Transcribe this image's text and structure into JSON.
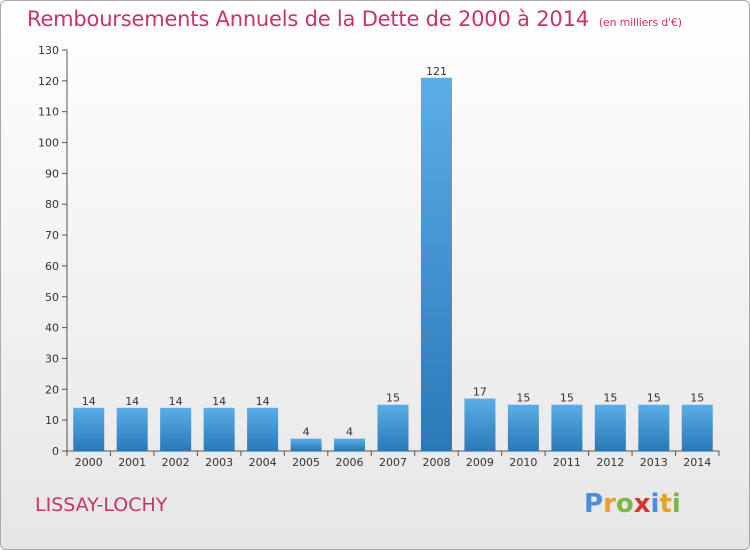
{
  "header": {
    "title": "Remboursements Annuels de la Dette de 2000 à 2014",
    "subtitle": "(en milliers d'€)"
  },
  "footer": {
    "commune": "LISSAY-LOCHY",
    "logo_text": "Proxiti",
    "logo_letters": [
      {
        "char": "P",
        "color": "#4a8fd6"
      },
      {
        "char": "r",
        "color": "#e8a22b"
      },
      {
        "char": "o",
        "color": "#7bb841"
      },
      {
        "char": "x",
        "color": "#d9342b"
      },
      {
        "char": "i",
        "color": "#4a8fd6"
      },
      {
        "char": "t",
        "color": "#e8a22b"
      },
      {
        "char": "i",
        "color": "#7bb841"
      }
    ]
  },
  "chart_data": {
    "type": "bar",
    "categories": [
      "2000",
      "2001",
      "2002",
      "2003",
      "2004",
      "2005",
      "2006",
      "2007",
      "2008",
      "2009",
      "2010",
      "2011",
      "2012",
      "2013",
      "2014"
    ],
    "values": [
      14,
      14,
      14,
      14,
      14,
      4,
      4,
      15,
      121,
      17,
      15,
      15,
      15,
      15,
      15
    ],
    "ylim": [
      0,
      130
    ],
    "yticks": [
      0,
      10,
      20,
      30,
      40,
      50,
      60,
      70,
      80,
      90,
      100,
      110,
      120,
      130
    ],
    "grid": false,
    "bar_color_top": "#5aaee6",
    "bar_color_bottom": "#2a78b8"
  }
}
